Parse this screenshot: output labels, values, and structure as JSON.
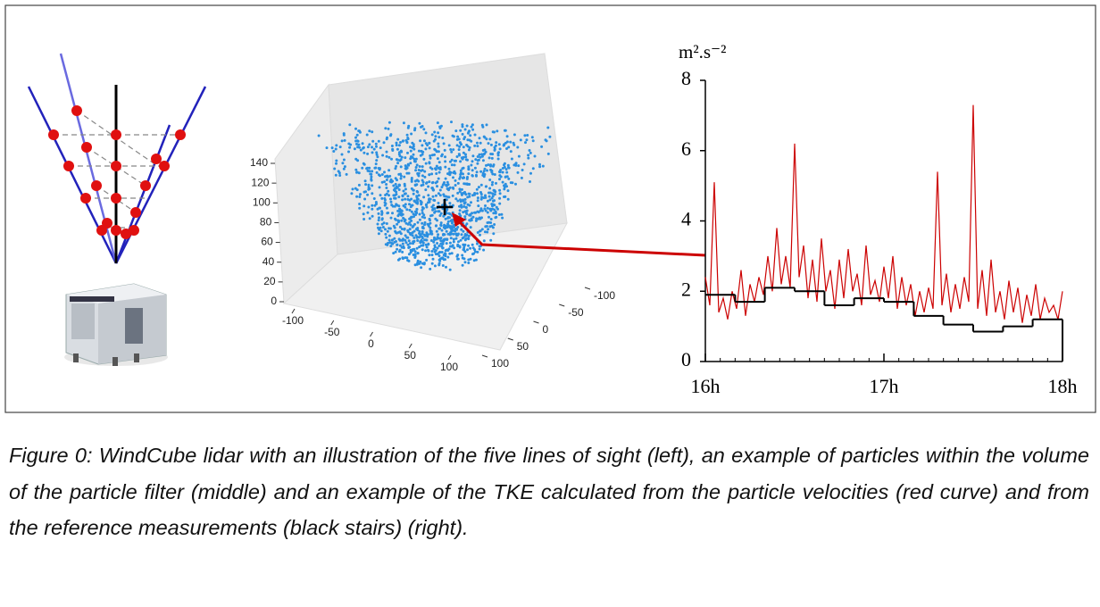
{
  "caption": "Figure 0: WindCube lidar with an illustration of the five lines of sight (left), an example of particles within the volume of the particle filter (middle) and an example of the TKE calculated from the particle velocities (red curve) and from the reference measurements (black stairs) (right).",
  "chart_data": [
    {
      "type": "scatter3d",
      "color": "#2a8fe0",
      "zticks": [
        0,
        20,
        40,
        60,
        80,
        100,
        120,
        140
      ],
      "xticks": [
        -100,
        -50,
        0,
        50,
        100
      ],
      "yticks": [
        -100,
        -50,
        0,
        50,
        100
      ]
    },
    {
      "type": "line",
      "y_label": "m².s⁻²",
      "xlim": [
        16,
        18
      ],
      "xticks": [
        {
          "value": 16,
          "label": "16h"
        },
        {
          "value": 17,
          "label": "17h"
        },
        {
          "value": 18,
          "label": "18h"
        }
      ],
      "ylim": [
        0,
        8
      ],
      "yticks": [
        0,
        2,
        4,
        6,
        8
      ],
      "series": [
        {
          "color": "#cc0000",
          "x": [
            16,
            16.025,
            16.05,
            16.075,
            16.1,
            16.125,
            16.15,
            16.175,
            16.2,
            16.225,
            16.25,
            16.275,
            16.3,
            16.325,
            16.35,
            16.375,
            16.4,
            16.425,
            16.45,
            16.475,
            16.5,
            16.525,
            16.55,
            16.575,
            16.6,
            16.625,
            16.65,
            16.675,
            16.7,
            16.725,
            16.75,
            16.775,
            16.8,
            16.825,
            16.85,
            16.875,
            16.9,
            16.925,
            16.95,
            16.975,
            17,
            17.025,
            17.05,
            17.075,
            17.1,
            17.125,
            17.15,
            17.175,
            17.2,
            17.225,
            17.25,
            17.275,
            17.3,
            17.325,
            17.35,
            17.375,
            17.4,
            17.425,
            17.45,
            17.475,
            17.5,
            17.525,
            17.55,
            17.575,
            17.6,
            17.625,
            17.65,
            17.675,
            17.7,
            17.725,
            17.75,
            17.775,
            17.8,
            17.825,
            17.85,
            17.875,
            17.9,
            17.925,
            17.95,
            17.975,
            18
          ],
          "values": [
            2.4,
            1.6,
            5.1,
            1.4,
            1.8,
            1.2,
            2.0,
            1.5,
            2.6,
            1.3,
            2.2,
            1.7,
            2.4,
            1.9,
            3.0,
            2.0,
            3.8,
            2.2,
            3.0,
            2.1,
            6.2,
            2.4,
            3.3,
            1.8,
            2.9,
            1.7,
            3.5,
            2.0,
            2.6,
            1.5,
            2.9,
            1.8,
            3.2,
            2.0,
            2.5,
            1.6,
            3.3,
            1.9,
            2.3,
            1.7,
            2.7,
            1.8,
            3.0,
            1.5,
            2.4,
            1.6,
            2.2,
            1.3,
            2.0,
            1.4,
            2.1,
            1.5,
            5.4,
            1.6,
            2.5,
            1.4,
            2.2,
            1.5,
            2.4,
            1.7,
            7.3,
            1.5,
            2.6,
            1.3,
            2.9,
            1.4,
            2.0,
            1.2,
            2.3,
            1.4,
            2.1,
            1.1,
            1.9,
            1.3,
            2.2,
            1.2,
            1.8,
            1.4,
            1.6,
            1.2,
            2.0
          ]
        },
        {
          "color": "#000000",
          "step": true,
          "x": [
            16,
            16.167,
            16.333,
            16.5,
            16.667,
            16.833,
            17,
            17.167,
            17.333,
            17.5,
            17.667,
            17.833
          ],
          "values": [
            1.9,
            1.7,
            2.1,
            2.0,
            1.6,
            1.8,
            1.7,
            1.3,
            1.05,
            0.85,
            1.0,
            1.2
          ]
        }
      ]
    }
  ]
}
